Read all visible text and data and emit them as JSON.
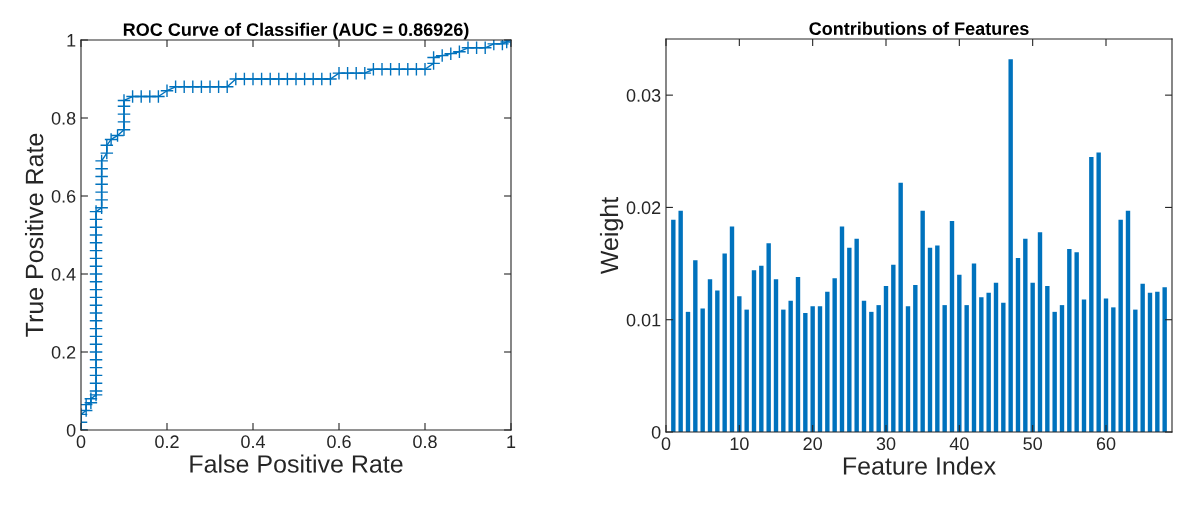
{
  "chart_data": [
    {
      "type": "line",
      "title": "ROC Curve of Classifier (AUC = 0.86926)",
      "xlabel": "False Positive Rate",
      "ylabel": "True Positive Rate",
      "marker": "cross",
      "line_style": "solid",
      "grid": false,
      "xlim": [
        0,
        1
      ],
      "ylim": [
        0,
        1
      ],
      "xticks": [
        0,
        0.2,
        0.4,
        0.6,
        0.8,
        1
      ],
      "yticks": [
        0,
        0.2,
        0.4,
        0.6,
        0.8,
        1
      ],
      "series": [
        {
          "color": "#0072bd",
          "x": [
            0,
            0,
            0,
            0.012,
            0.012,
            0.023,
            0.023,
            0.035,
            0.035,
            0.035,
            0.035,
            0.035,
            0.035,
            0.035,
            0.035,
            0.035,
            0.035,
            0.035,
            0.035,
            0.035,
            0.035,
            0.035,
            0.035,
            0.035,
            0.035,
            0.035,
            0.035,
            0.035,
            0.035,
            0.035,
            0.035,
            0.035,
            0.048,
            0.048,
            0.048,
            0.048,
            0.048,
            0.048,
            0.048,
            0.06,
            0.06,
            0.07,
            0.085,
            0.1,
            0.1,
            0.1,
            0.1,
            0.1,
            0.12,
            0.14,
            0.16,
            0.18,
            0.2,
            0.22,
            0.24,
            0.26,
            0.28,
            0.3,
            0.32,
            0.34,
            0.36,
            0.38,
            0.4,
            0.42,
            0.44,
            0.46,
            0.48,
            0.5,
            0.52,
            0.54,
            0.56,
            0.58,
            0.6,
            0.62,
            0.64,
            0.66,
            0.68,
            0.7,
            0.72,
            0.74,
            0.76,
            0.78,
            0.8,
            0.82,
            0.82,
            0.84,
            0.86,
            0.88,
            0.9,
            0.92,
            0.94,
            0.96,
            0.98,
            0.99,
            1
          ],
          "values": [
            0,
            0.02,
            0.04,
            0.05,
            0.065,
            0.07,
            0.08,
            0.09,
            0.1,
            0.12,
            0.14,
            0.16,
            0.18,
            0.2,
            0.22,
            0.24,
            0.26,
            0.28,
            0.3,
            0.32,
            0.34,
            0.36,
            0.38,
            0.4,
            0.42,
            0.44,
            0.46,
            0.48,
            0.5,
            0.52,
            0.54,
            0.56,
            0.57,
            0.59,
            0.61,
            0.63,
            0.65,
            0.67,
            0.69,
            0.71,
            0.73,
            0.745,
            0.755,
            0.77,
            0.79,
            0.81,
            0.83,
            0.845,
            0.855,
            0.855,
            0.855,
            0.855,
            0.87,
            0.88,
            0.88,
            0.88,
            0.88,
            0.88,
            0.88,
            0.88,
            0.9,
            0.9,
            0.9,
            0.9,
            0.9,
            0.9,
            0.9,
            0.9,
            0.9,
            0.9,
            0.9,
            0.9,
            0.915,
            0.915,
            0.915,
            0.915,
            0.925,
            0.925,
            0.925,
            0.925,
            0.925,
            0.925,
            0.925,
            0.94,
            0.955,
            0.96,
            0.965,
            0.97,
            0.98,
            0.98,
            0.98,
            0.99,
            0.99,
            0.995,
            1
          ]
        }
      ]
    },
    {
      "type": "bar",
      "title": "Contributions of Features",
      "xlabel": "Feature Index",
      "ylabel": "Weight",
      "grid": false,
      "xlim": [
        0,
        69
      ],
      "ylim": [
        0,
        0.035
      ],
      "xticks": [
        0,
        10,
        20,
        30,
        40,
        50,
        60
      ],
      "yticks": [
        0,
        0.01,
        0.02,
        0.03
      ],
      "x": [
        1,
        2,
        3,
        4,
        5,
        6,
        7,
        8,
        9,
        10,
        11,
        12,
        13,
        14,
        15,
        16,
        17,
        18,
        19,
        20,
        21,
        22,
        23,
        24,
        25,
        26,
        27,
        28,
        29,
        30,
        31,
        32,
        33,
        34,
        35,
        36,
        37,
        38,
        39,
        40,
        41,
        42,
        43,
        44,
        45,
        46,
        47,
        48,
        49,
        50,
        51,
        52,
        53,
        54,
        55,
        56,
        57,
        58,
        59,
        60,
        61,
        62,
        63,
        64,
        65,
        66,
        67,
        68
      ],
      "series": [
        {
          "color": "#0072bd",
          "values": [
            0.0189,
            0.0197,
            0.0107,
            0.0153,
            0.011,
            0.0136,
            0.0126,
            0.0159,
            0.0183,
            0.0121,
            0.0109,
            0.0144,
            0.0148,
            0.0168,
            0.0136,
            0.0109,
            0.0117,
            0.0138,
            0.0106,
            0.0112,
            0.0112,
            0.0125,
            0.0137,
            0.0183,
            0.0164,
            0.0172,
            0.0117,
            0.0107,
            0.0113,
            0.013,
            0.0149,
            0.0222,
            0.0112,
            0.0131,
            0.0197,
            0.0164,
            0.0166,
            0.0113,
            0.0188,
            0.014,
            0.0113,
            0.015,
            0.012,
            0.0124,
            0.0133,
            0.0115,
            0.0332,
            0.0155,
            0.0172,
            0.0133,
            0.0178,
            0.013,
            0.0107,
            0.0113,
            0.0163,
            0.016,
            0.0118,
            0.0245,
            0.0249,
            0.0119,
            0.0111,
            0.0189,
            0.0197,
            0.0109,
            0.0132,
            0.0124,
            0.0125,
            0.0129
          ]
        }
      ]
    }
  ]
}
